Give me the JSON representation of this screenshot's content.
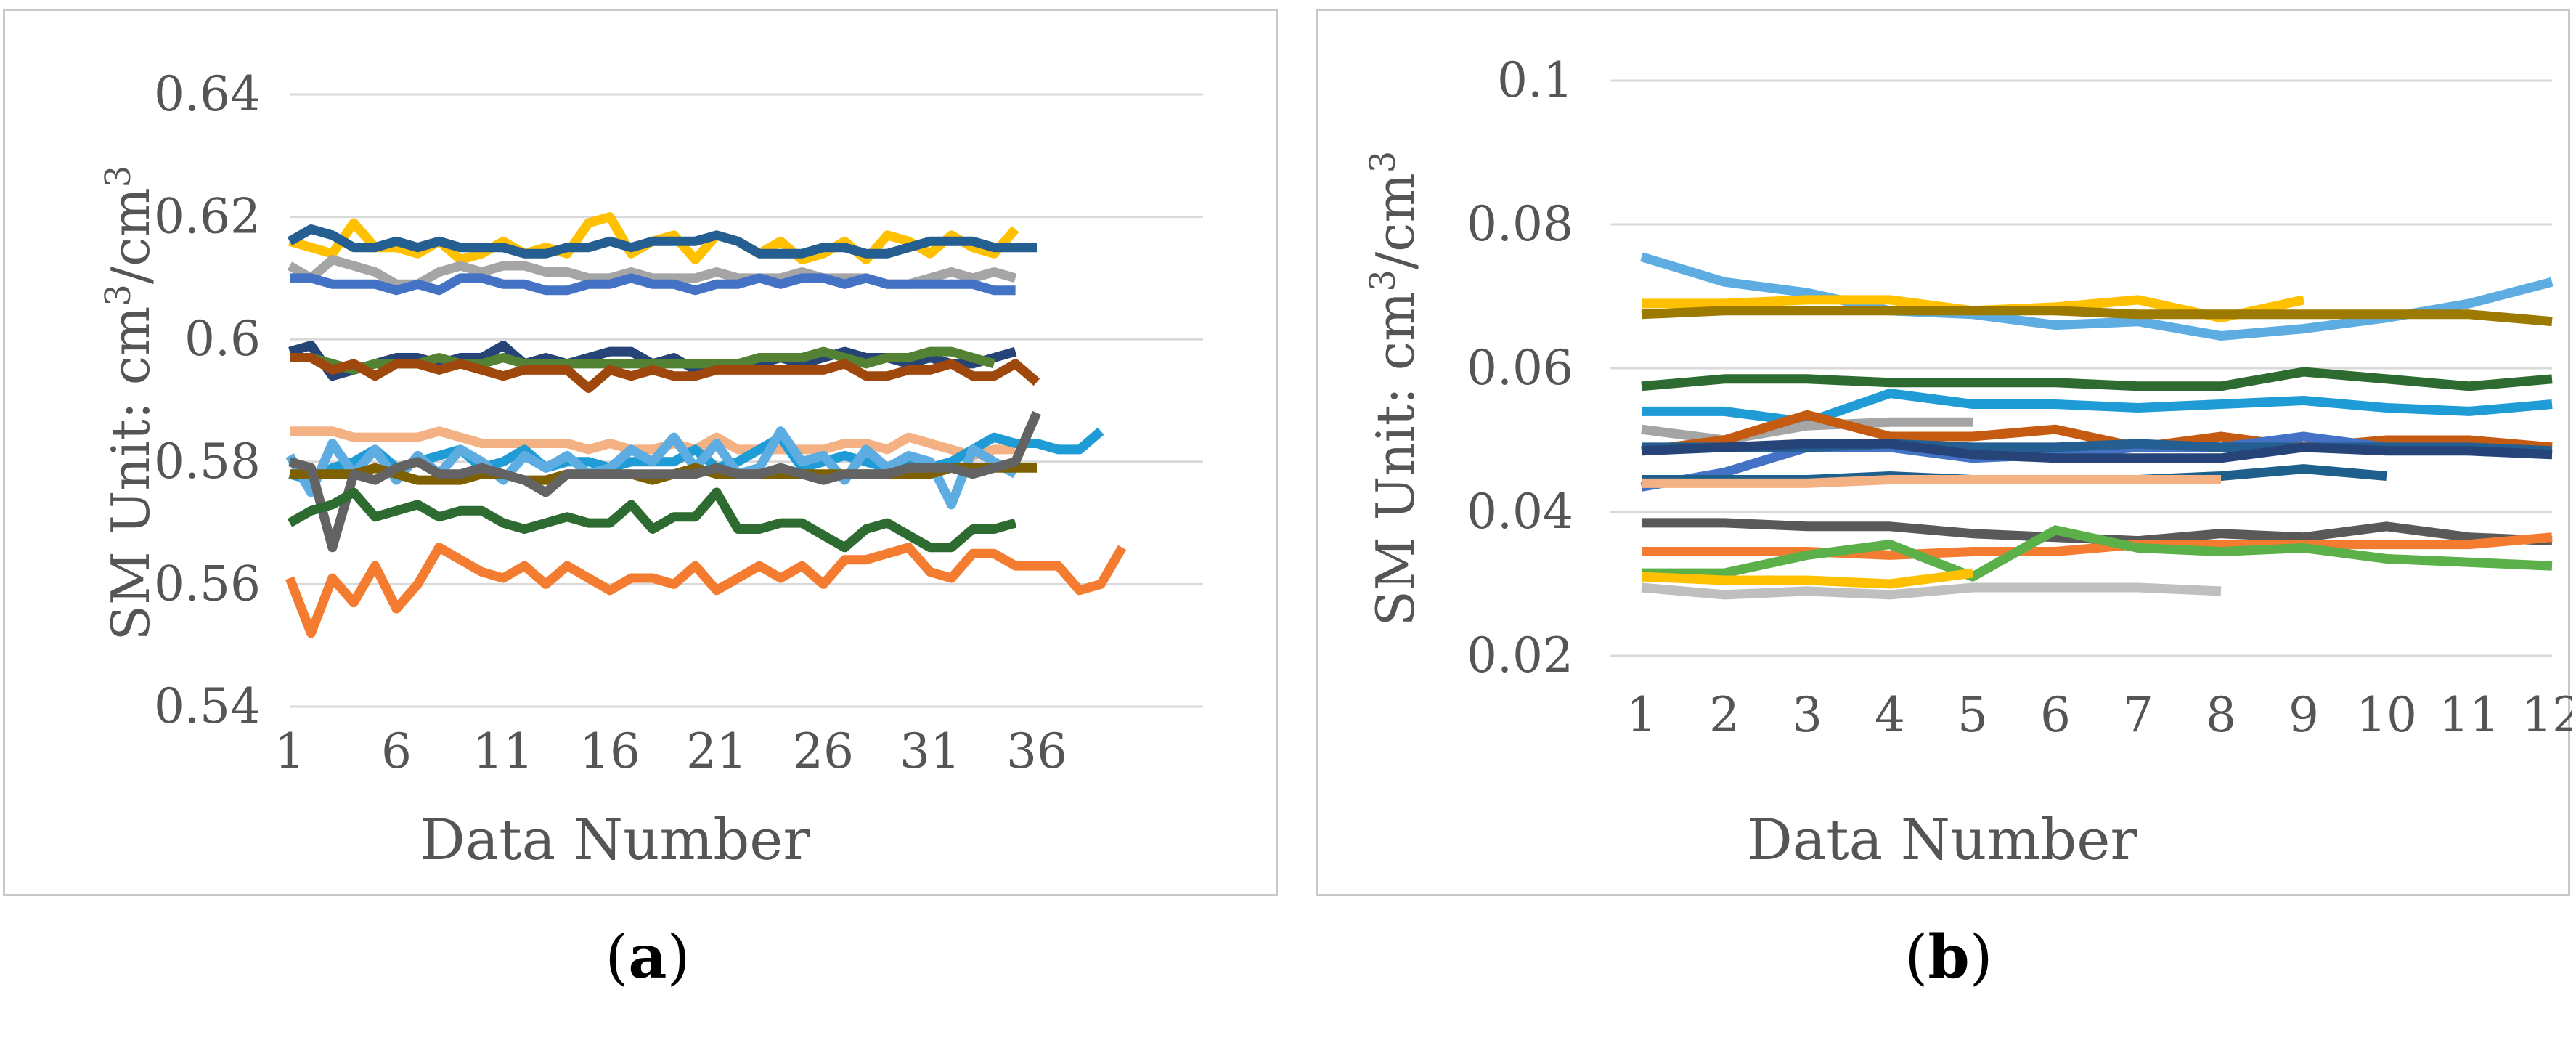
{
  "chart_data": [
    {
      "type": "line",
      "panel": "a",
      "caption": {
        "open": "(",
        "letter": "a",
        "close": ")"
      },
      "xlabel": "Data Number",
      "ylabel": {
        "prefix": "SM  Unit: cm",
        "sup1": "3",
        "mid": "/cm",
        "sup2": "3"
      },
      "ylim": [
        0.54,
        0.64
      ],
      "yticks": [
        "0.54",
        "0.56",
        "0.58",
        "0.6",
        "0.62",
        "0.64"
      ],
      "xlim": [
        1,
        40
      ],
      "xticks": [
        "1",
        "6",
        "11",
        "16",
        "21",
        "26",
        "31",
        "36"
      ],
      "grid": true,
      "series": [
        {
          "color": "#FFC000",
          "values": [
            0.616,
            0.615,
            0.614,
            0.619,
            0.615,
            0.615,
            0.614,
            0.616,
            0.613,
            0.614,
            0.616,
            0.614,
            0.615,
            0.614,
            0.619,
            0.62,
            0.614,
            0.616,
            0.617,
            0.613,
            0.617,
            0.616,
            0.614,
            0.616,
            0.613,
            0.614,
            0.616,
            0.613,
            0.617,
            0.616,
            0.614,
            0.617,
            0.615,
            0.614,
            0.618
          ]
        },
        {
          "color": "#255E91",
          "values": [
            0.616,
            0.618,
            0.617,
            0.615,
            0.615,
            0.616,
            0.615,
            0.616,
            0.615,
            0.615,
            0.615,
            0.614,
            0.614,
            0.615,
            0.615,
            0.616,
            0.615,
            0.616,
            0.616,
            0.616,
            0.617,
            0.616,
            0.614,
            0.614,
            0.614,
            0.615,
            0.615,
            0.614,
            0.614,
            0.615,
            0.616,
            0.616,
            0.616,
            0.615,
            0.615,
            0.615
          ]
        },
        {
          "color": "#A5A5A5",
          "values": [
            0.612,
            0.61,
            0.613,
            0.612,
            0.611,
            0.609,
            0.609,
            0.611,
            0.612,
            0.611,
            0.612,
            0.612,
            0.611,
            0.611,
            0.61,
            0.61,
            0.611,
            0.61,
            0.61,
            0.61,
            0.611,
            0.61,
            0.61,
            0.61,
            0.611,
            0.61,
            0.61,
            0.61,
            0.609,
            0.609,
            0.61,
            0.611,
            0.61,
            0.611,
            0.61
          ]
        },
        {
          "color": "#4472C4",
          "values": [
            0.61,
            0.61,
            0.609,
            0.609,
            0.609,
            0.608,
            0.609,
            0.608,
            0.61,
            0.61,
            0.609,
            0.609,
            0.608,
            0.608,
            0.609,
            0.609,
            0.61,
            0.609,
            0.609,
            0.608,
            0.609,
            0.609,
            0.61,
            0.609,
            0.61,
            0.61,
            0.609,
            0.61,
            0.609,
            0.609,
            0.609,
            0.609,
            0.609,
            0.608,
            0.608
          ]
        },
        {
          "color": "#264478",
          "values": [
            0.598,
            0.599,
            0.594,
            0.595,
            0.596,
            0.597,
            0.597,
            0.596,
            0.597,
            0.597,
            0.599,
            0.596,
            0.597,
            0.596,
            0.597,
            0.598,
            0.598,
            0.596,
            0.597,
            0.595,
            0.596,
            0.596,
            0.596,
            0.597,
            0.596,
            0.597,
            0.598,
            0.597,
            0.597,
            0.596,
            0.597,
            0.596,
            0.596,
            0.597,
            0.598
          ]
        },
        {
          "color": "#548235",
          "values": [
            0.597,
            0.597,
            0.596,
            0.595,
            0.596,
            0.596,
            0.596,
            0.597,
            0.596,
            0.596,
            0.597,
            0.596,
            0.596,
            0.596,
            0.596,
            0.596,
            0.596,
            0.596,
            0.596,
            0.596,
            0.596,
            0.596,
            0.597,
            0.597,
            0.597,
            0.598,
            0.597,
            0.596,
            0.597,
            0.597,
            0.598,
            0.598,
            0.597,
            0.596
          ]
        },
        {
          "color": "#9E480E",
          "values": [
            0.597,
            0.597,
            0.595,
            0.596,
            0.594,
            0.596,
            0.596,
            0.595,
            0.596,
            0.595,
            0.594,
            0.595,
            0.595,
            0.595,
            0.592,
            0.595,
            0.594,
            0.595,
            0.594,
            0.594,
            0.595,
            0.595,
            0.595,
            0.595,
            0.595,
            0.595,
            0.596,
            0.594,
            0.594,
            0.595,
            0.595,
            0.596,
            0.594,
            0.594,
            0.596,
            0.593
          ]
        },
        {
          "color": "#F4B183",
          "values": [
            0.585,
            0.585,
            0.585,
            0.584,
            0.584,
            0.584,
            0.584,
            0.585,
            0.584,
            0.583,
            0.583,
            0.583,
            0.583,
            0.583,
            0.582,
            0.583,
            0.582,
            0.582,
            0.583,
            0.582,
            0.584,
            0.582,
            0.582,
            0.582,
            0.582,
            0.582,
            0.583,
            0.583,
            0.582,
            0.584,
            0.583,
            0.582,
            0.581,
            0.582,
            0.582
          ]
        },
        {
          "color": "#1F9BD5",
          "values": [
            0.578,
            0.577,
            0.579,
            0.58,
            0.582,
            0.579,
            0.58,
            0.581,
            0.582,
            0.579,
            0.58,
            0.582,
            0.579,
            0.58,
            0.58,
            0.579,
            0.58,
            0.58,
            0.58,
            0.582,
            0.579,
            0.58,
            0.582,
            0.584,
            0.579,
            0.58,
            0.581,
            0.58,
            0.579,
            0.58,
            0.579,
            0.58,
            0.582,
            0.584,
            0.583,
            0.583,
            0.582,
            0.582,
            0.585
          ]
        },
        {
          "color": "#5DADE2",
          "values": [
            0.581,
            0.575,
            0.583,
            0.578,
            0.582,
            0.577,
            0.581,
            0.578,
            0.582,
            0.58,
            0.577,
            0.581,
            0.579,
            0.581,
            0.578,
            0.579,
            0.582,
            0.58,
            0.584,
            0.579,
            0.583,
            0.578,
            0.579,
            0.585,
            0.58,
            0.581,
            0.577,
            0.582,
            0.579,
            0.581,
            0.58,
            0.573,
            0.582,
            0.58,
            0.578
          ]
        },
        {
          "color": "#7F6000",
          "values": [
            0.578,
            0.578,
            0.578,
            0.578,
            0.579,
            0.578,
            0.577,
            0.577,
            0.577,
            0.578,
            0.578,
            0.577,
            0.577,
            0.578,
            0.578,
            0.578,
            0.578,
            0.577,
            0.578,
            0.579,
            0.578,
            0.578,
            0.578,
            0.578,
            0.578,
            0.578,
            0.578,
            0.578,
            0.578,
            0.578,
            0.578,
            0.579,
            0.579,
            0.579,
            0.579,
            0.579
          ]
        },
        {
          "color": "#636363",
          "values": [
            0.58,
            0.579,
            0.566,
            0.578,
            0.577,
            0.579,
            0.58,
            0.578,
            0.578,
            0.579,
            0.578,
            0.577,
            0.575,
            0.578,
            0.578,
            0.578,
            0.578,
            0.578,
            0.578,
            0.578,
            0.579,
            0.578,
            0.578,
            0.579,
            0.578,
            0.577,
            0.578,
            0.578,
            0.578,
            0.579,
            0.579,
            0.579,
            0.578,
            0.579,
            0.58,
            0.588
          ]
        },
        {
          "color": "#2E6B30",
          "values": [
            0.57,
            0.572,
            0.573,
            0.575,
            0.571,
            0.572,
            0.573,
            0.571,
            0.572,
            0.572,
            0.57,
            0.569,
            0.57,
            0.571,
            0.57,
            0.57,
            0.573,
            0.569,
            0.571,
            0.571,
            0.575,
            0.569,
            0.569,
            0.57,
            0.57,
            0.568,
            0.566,
            0.569,
            0.57,
            0.568,
            0.566,
            0.566,
            0.569,
            0.569,
            0.57
          ]
        },
        {
          "color": "#F47C30",
          "values": [
            0.561,
            0.552,
            0.561,
            0.557,
            0.563,
            0.556,
            0.56,
            0.566,
            0.564,
            0.562,
            0.561,
            0.563,
            0.56,
            0.563,
            0.561,
            0.559,
            0.561,
            0.561,
            0.56,
            0.563,
            0.559,
            0.561,
            0.563,
            0.561,
            0.563,
            0.56,
            0.564,
            0.564,
            0.565,
            0.566,
            0.562,
            0.561,
            0.565,
            0.565,
            0.563,
            0.563,
            0.563,
            0.559,
            0.56,
            0.566
          ]
        }
      ]
    },
    {
      "type": "line",
      "panel": "b",
      "caption": {
        "open": "(",
        "letter": "b",
        "close": ")"
      },
      "xlabel": "Data Number",
      "ylabel": {
        "prefix": "SM  Unit: cm",
        "sup1": "3",
        "mid": "/cm",
        "sup2": "3"
      },
      "ylim": [
        0.02,
        0.1
      ],
      "yticks": [
        "0.02",
        "0.04",
        "0.06",
        "0.08",
        "0.1"
      ],
      "xlim": [
        1,
        12
      ],
      "xticks": [
        "1",
        "2",
        "3",
        "4",
        "5",
        "6",
        "7",
        "8",
        "9",
        "10",
        "11",
        "12"
      ],
      "grid": true,
      "series": [
        {
          "color": "#5DADE2",
          "values": [
            0.0755,
            0.072,
            0.0705,
            0.068,
            0.0675,
            0.066,
            0.0665,
            0.0645,
            0.0655,
            0.067,
            0.069,
            0.072
          ]
        },
        {
          "color": "#FFC000",
          "values": [
            0.069,
            0.069,
            0.0695,
            0.0695,
            0.068,
            0.0685,
            0.0695,
            0.067,
            0.0695
          ]
        },
        {
          "color": "#9C7A00",
          "values": [
            0.0675,
            0.068,
            0.068,
            0.068,
            0.068,
            0.068,
            0.0675,
            0.0675,
            0.0675,
            0.0675,
            0.0675,
            0.0665
          ]
        },
        {
          "color": "#2E6B30",
          "values": [
            0.0575,
            0.0585,
            0.0585,
            0.058,
            0.058,
            0.058,
            0.0575,
            0.0575,
            0.0595,
            0.0585,
            0.0575,
            0.0585
          ]
        },
        {
          "color": "#1F9BD5",
          "values": [
            0.054,
            0.054,
            0.0525,
            0.0565,
            0.055,
            0.055,
            0.0545,
            0.055,
            0.0555,
            0.0545,
            0.054,
            0.055
          ]
        },
        {
          "color": "#A5A5A5",
          "values": [
            0.0515,
            0.05,
            0.052,
            0.0525,
            0.0525
          ]
        },
        {
          "color": "#C55A11",
          "values": [
            0.0485,
            0.05,
            0.0535,
            0.0505,
            0.0505,
            0.0515,
            0.049,
            0.0505,
            0.049,
            0.05,
            0.05,
            0.049
          ]
        },
        {
          "color": "#4472C4",
          "values": [
            0.0435,
            0.0455,
            0.049,
            0.049,
            0.0475,
            0.048,
            0.049,
            0.049,
            0.0505,
            0.049,
            0.0485,
            0.048
          ]
        },
        {
          "color": "#255E91",
          "values": [
            0.049,
            0.049,
            0.049,
            0.0495,
            0.049,
            0.049,
            0.0495,
            0.049,
            0.049,
            0.049,
            0.049,
            0.0485
          ]
        },
        {
          "color": "#264478",
          "values": [
            0.0485,
            0.049,
            0.0495,
            0.0495,
            0.048,
            0.0475,
            0.0475,
            0.0475,
            0.049,
            0.0485,
            0.0485,
            0.048
          ]
        },
        {
          "color": "#1F5F8B",
          "values": [
            0.0445,
            0.0445,
            0.0445,
            0.045,
            0.0445,
            0.0445,
            0.0445,
            0.045,
            0.046,
            0.045
          ]
        },
        {
          "color": "#F4B183",
          "values": [
            0.044,
            0.044,
            0.044,
            0.0445,
            0.0445,
            0.0445,
            0.0445,
            0.0445
          ]
        },
        {
          "color": "#595959",
          "values": [
            0.0385,
            0.0385,
            0.038,
            0.038,
            0.037,
            0.0365,
            0.036,
            0.037,
            0.0365,
            0.038,
            0.0365,
            0.036
          ]
        },
        {
          "color": "#F47C30",
          "values": [
            0.0345,
            0.0345,
            0.0345,
            0.034,
            0.0345,
            0.0345,
            0.0355,
            0.0355,
            0.0355,
            0.0355,
            0.0355,
            0.0365
          ]
        },
        {
          "color": "#5BB04A",
          "values": [
            0.0315,
            0.0315,
            0.034,
            0.0355,
            0.031,
            0.0375,
            0.035,
            0.0345,
            0.035,
            0.0335,
            0.033,
            0.0325
          ]
        },
        {
          "color": "#FFC000",
          "values": [
            0.031,
            0.0305,
            0.0305,
            0.03,
            0.0315
          ]
        },
        {
          "color": "#BFBFBF",
          "values": [
            0.0295,
            0.0285,
            0.029,
            0.0285,
            0.0295,
            0.0295,
            0.0295,
            0.029
          ]
        }
      ]
    }
  ]
}
